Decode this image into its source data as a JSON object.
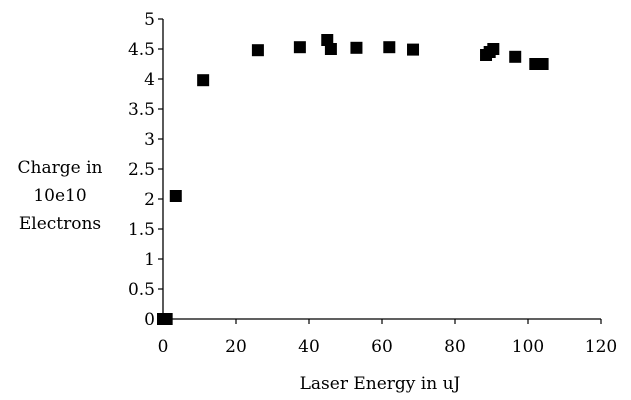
{
  "chart_data": {
    "type": "scatter",
    "title": "",
    "xlabel": "Laser Energy in uJ",
    "ylabel_lines": [
      "Charge in",
      "10e10",
      "Electrons"
    ],
    "xlim": [
      0,
      120
    ],
    "ylim": [
      0,
      5
    ],
    "x_ticks": [
      0,
      20,
      40,
      60,
      80,
      100,
      120
    ],
    "y_ticks": [
      0,
      0.5,
      1,
      1.5,
      2,
      2.5,
      3,
      3.5,
      4,
      4.5,
      5
    ],
    "x_tick_labels": [
      "0",
      "20",
      "40",
      "60",
      "80",
      "100",
      "120"
    ],
    "y_tick_labels": [
      "0",
      "0.5",
      "1",
      "1.5",
      "2",
      "2.5",
      "3",
      "3.5",
      "4",
      "4.5",
      "5"
    ],
    "grid": false,
    "legend": "none",
    "marker": "filled-square",
    "marker_color": "#000000",
    "series": [
      {
        "points": [
          {
            "x": 0.0,
            "y": 0.0
          },
          {
            "x": 0.5,
            "y": 0.0
          },
          {
            "x": 1.0,
            "y": 0.0
          },
          {
            "x": 3.5,
            "y": 2.05
          },
          {
            "x": 11.0,
            "y": 3.98
          },
          {
            "x": 26.0,
            "y": 4.48
          },
          {
            "x": 37.5,
            "y": 4.53
          },
          {
            "x": 45.0,
            "y": 4.65
          },
          {
            "x": 46.0,
            "y": 4.5
          },
          {
            "x": 53.0,
            "y": 4.52
          },
          {
            "x": 62.0,
            "y": 4.53
          },
          {
            "x": 68.5,
            "y": 4.49
          },
          {
            "x": 88.5,
            "y": 4.4
          },
          {
            "x": 89.5,
            "y": 4.45
          },
          {
            "x": 90.5,
            "y": 4.5
          },
          {
            "x": 96.5,
            "y": 4.37
          },
          {
            "x": 102.0,
            "y": 4.25
          },
          {
            "x": 104.0,
            "y": 4.25
          }
        ]
      }
    ]
  }
}
